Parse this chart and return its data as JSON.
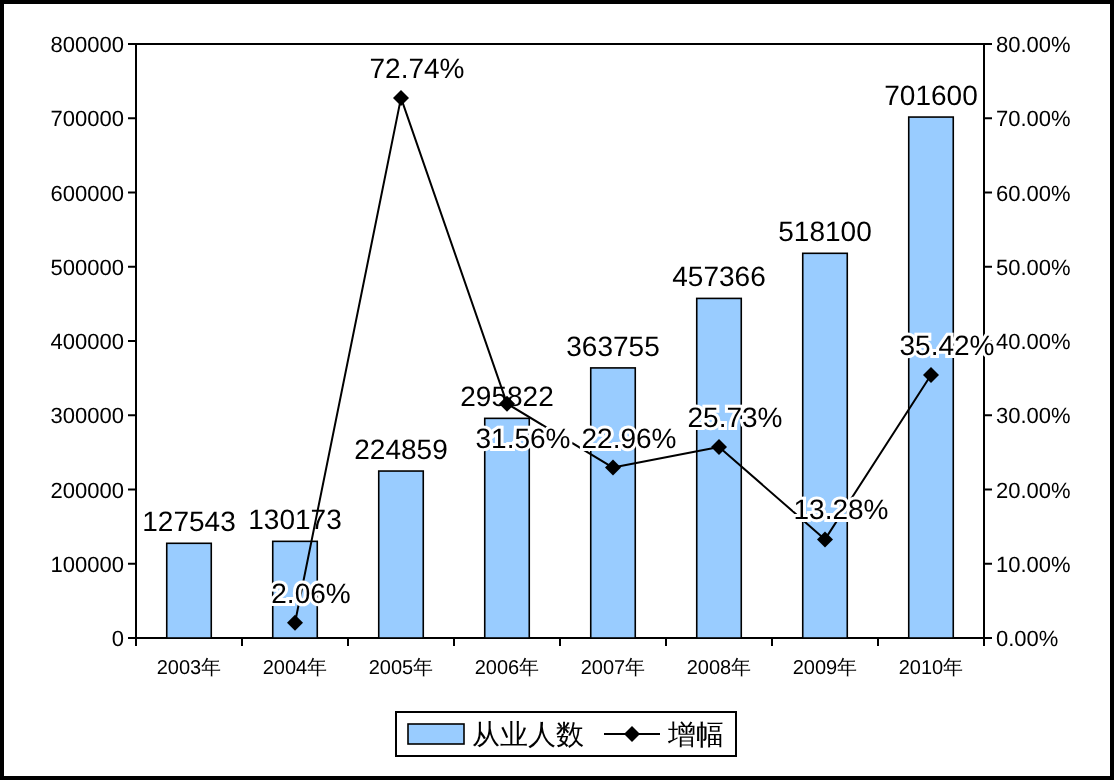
{
  "chart_data": {
    "type": "bar",
    "categories": [
      "2003年",
      "2004年",
      "2005年",
      "2006年",
      "2007年",
      "2008年",
      "2009年",
      "2010年"
    ],
    "series": [
      {
        "name": "从业人数",
        "color": "#99ccff",
        "values": [
          127543,
          130173,
          224859,
          295822,
          363755,
          457366,
          518100,
          701600
        ],
        "value_labels": [
          "127543",
          "130173",
          "224859",
          "295822",
          "363755",
          "457366",
          "518100",
          "701600"
        ]
      },
      {
        "name": "增幅",
        "type": "line",
        "axis": "y2",
        "color": "#000000",
        "marker": "diamond",
        "values": [
          null,
          2.06,
          72.74,
          31.56,
          22.96,
          25.73,
          13.28,
          35.42
        ],
        "value_labels": [
          null,
          "2.06%",
          "72.74%",
          "31.56%",
          "22.96%",
          "25.73%",
          "13.28%",
          "35.42%"
        ]
      }
    ],
    "ylim": [
      0,
      800000
    ],
    "yticks": [
      0,
      100000,
      200000,
      300000,
      400000,
      500000,
      600000,
      700000,
      800000
    ],
    "y2lim": [
      0,
      80
    ],
    "y2ticks": [
      {
        "value": 0,
        "label": "0.00%"
      },
      {
        "value": 10,
        "label": "10.00%"
      },
      {
        "value": 20,
        "label": "20.00%"
      },
      {
        "value": 30,
        "label": "30.00%"
      },
      {
        "value": 40,
        "label": "40.00%"
      },
      {
        "value": 50,
        "label": "50.00%"
      },
      {
        "value": 60,
        "label": "60.00%"
      },
      {
        "value": 70,
        "label": "70.00%"
      },
      {
        "value": 80,
        "label": "80.00%"
      }
    ],
    "legend": "bottom",
    "grid": false
  }
}
